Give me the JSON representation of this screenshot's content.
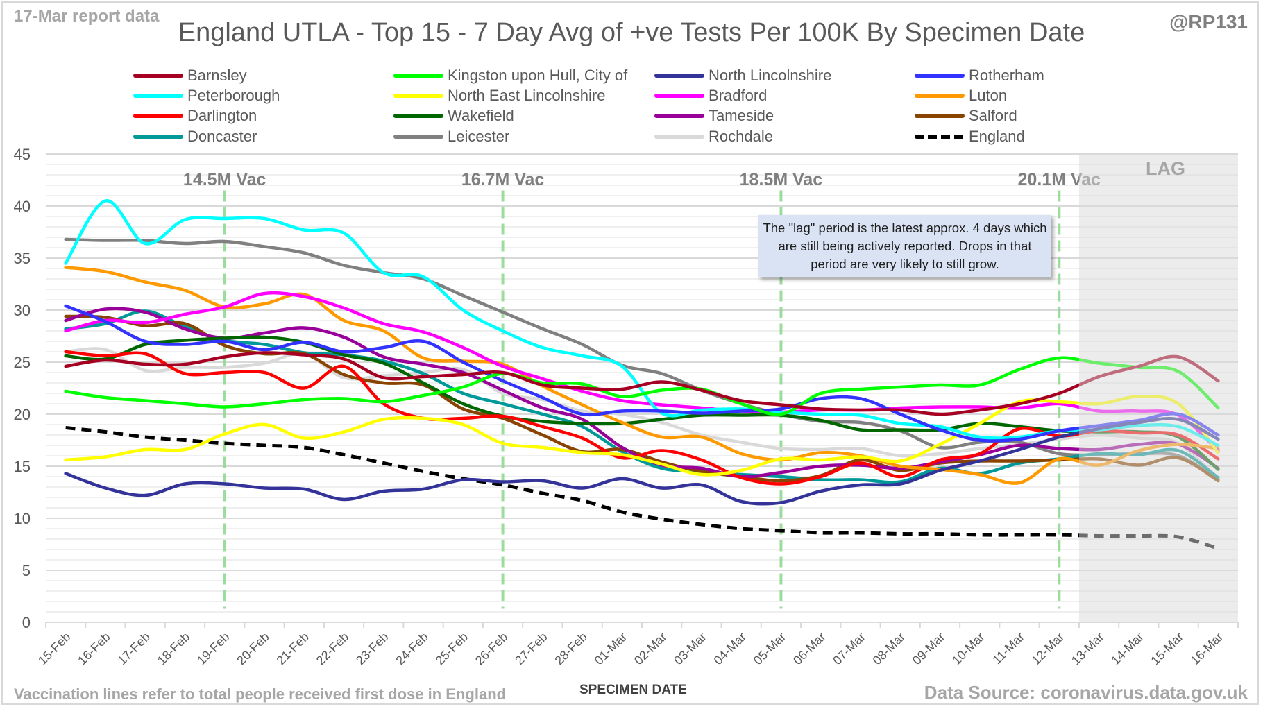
{
  "header": {
    "report_date": "17-Mar report data",
    "title": "England UTLA - Top 15 - 7 Day Avg of +ve Tests Per 100K By Specimen Date",
    "handle": "@RP131"
  },
  "footer": {
    "vaccination_note": "Vaccination lines refer to total people received first dose in England",
    "data_source": "Data Source: coronavirus.data.gov.uk"
  },
  "annotation": {
    "lag_label": "LAG",
    "lag_note": "The \"lag\" period is the latest approx. 4 days which are still being actively reported.  Drops in that period are very likely to still grow."
  },
  "chart_data": {
    "type": "line",
    "title": "England UTLA - Top 15 - 7 Day Avg of +ve Tests Per 100K By Specimen Date",
    "xlabel": "SPECIMEN DATE",
    "ylabel": "",
    "ylim": [
      0,
      45
    ],
    "yticks": [
      0,
      5,
      10,
      15,
      20,
      25,
      30,
      35,
      40,
      45
    ],
    "grid": true,
    "legend_position": "top",
    "x": [
      "15-Feb",
      "16-Feb",
      "17-Feb",
      "18-Feb",
      "19-Feb",
      "20-Feb",
      "21-Feb",
      "22-Feb",
      "23-Feb",
      "24-Feb",
      "25-Feb",
      "26-Feb",
      "27-Feb",
      "28-Feb",
      "01-Mar",
      "02-Mar",
      "03-Mar",
      "04-Mar",
      "05-Mar",
      "06-Mar",
      "07-Mar",
      "08-Mar",
      "09-Mar",
      "10-Mar",
      "11-Mar",
      "12-Mar",
      "13-Mar",
      "14-Mar",
      "15-Mar",
      "16-Mar"
    ],
    "lag_period": {
      "label": "LAG",
      "from": "13-Mar",
      "to": "16-Mar"
    },
    "vaccination_markers": [
      {
        "date": "19-Feb",
        "label": "14.5M Vac"
      },
      {
        "date": "26-Feb",
        "label": "16.7M Vac"
      },
      {
        "date": "05-Mar",
        "label": "18.5M Vac"
      },
      {
        "date": "12-Mar",
        "label": "20.1M Vac"
      }
    ],
    "series": [
      {
        "name": "Barnsley",
        "color": "#a50021",
        "dashed": false,
        "values": [
          24.6,
          25.2,
          24.8,
          24.8,
          25.5,
          25.9,
          25.7,
          25.3,
          23.5,
          23.6,
          23.8,
          24.0,
          22.8,
          22.5,
          22.4,
          23.1,
          22.3,
          21.3,
          20.9,
          20.5,
          20.4,
          20.4,
          20.0,
          20.4,
          21.0,
          22.0,
          23.6,
          24.6,
          25.5,
          23.2
        ]
      },
      {
        "name": "Kingston upon Hull, City of",
        "color": "#00ff00",
        "dashed": false,
        "values": [
          22.2,
          21.6,
          21.3,
          21.0,
          20.7,
          21.0,
          21.4,
          21.5,
          21.2,
          21.8,
          22.6,
          23.9,
          23.0,
          22.9,
          21.7,
          22.3,
          22.4,
          21.0,
          20.0,
          22.0,
          22.4,
          22.6,
          22.8,
          22.8,
          24.3,
          25.4,
          24.9,
          24.5,
          24.1,
          20.6
        ]
      },
      {
        "name": "North Lincolnshire",
        "color": "#333399",
        "dashed": false,
        "values": [
          14.3,
          12.9,
          12.2,
          13.3,
          13.3,
          12.9,
          12.8,
          11.8,
          12.6,
          12.8,
          13.7,
          13.5,
          13.6,
          12.9,
          13.8,
          12.9,
          13.2,
          11.6,
          11.5,
          12.6,
          13.2,
          13.3,
          14.6,
          15.5,
          16.6,
          17.8,
          18.6,
          19.2,
          19.5,
          17.6
        ]
      },
      {
        "name": "Rotherham",
        "color": "#3333ff",
        "dashed": false,
        "values": [
          30.4,
          28.9,
          27.0,
          26.7,
          27.0,
          26.2,
          26.9,
          26.0,
          26.4,
          27.0,
          25.0,
          23.2,
          21.6,
          20.0,
          20.3,
          20.3,
          20.1,
          20.3,
          20.5,
          21.5,
          21.5,
          20.0,
          18.5,
          17.5,
          17.6,
          18.4,
          18.9,
          19.4,
          20.0,
          18.0
        ]
      },
      {
        "name": "Peterborough",
        "color": "#00ffff",
        "dashed": false,
        "values": [
          34.5,
          40.5,
          36.4,
          38.7,
          38.8,
          38.8,
          37.7,
          37.4,
          33.6,
          33.2,
          30.0,
          28.0,
          26.4,
          25.6,
          24.6,
          20.1,
          20.4,
          20.5,
          20.2,
          20.0,
          19.9,
          19.1,
          18.8,
          17.8,
          17.8,
          18.4,
          18.5,
          18.9,
          18.8,
          17.0
        ]
      },
      {
        "name": "North East Lincolnshire",
        "color": "#ffff00",
        "dashed": false,
        "values": [
          15.6,
          15.9,
          16.6,
          16.6,
          18.1,
          19.0,
          17.7,
          18.3,
          19.5,
          19.6,
          19.0,
          17.2,
          16.8,
          16.3,
          16.1,
          15.2,
          14.2,
          14.6,
          15.7,
          15.6,
          15.9,
          15.5,
          17.1,
          19.1,
          21.2,
          21.2,
          21.0,
          21.7,
          21.0,
          16.3
        ]
      },
      {
        "name": "Bradford",
        "color": "#ff00ff",
        "dashed": false,
        "values": [
          28.0,
          29.0,
          28.8,
          29.6,
          30.3,
          31.6,
          31.3,
          30.2,
          28.7,
          27.9,
          26.4,
          24.6,
          23.4,
          22.2,
          21.3,
          20.9,
          20.6,
          20.3,
          20.2,
          20.4,
          20.4,
          20.6,
          20.7,
          20.7,
          20.6,
          21.0,
          20.3,
          20.3,
          19.9,
          16.5
        ]
      },
      {
        "name": "Luton",
        "color": "#ff9900",
        "dashed": false,
        "values": [
          34.1,
          33.7,
          32.7,
          31.9,
          30.3,
          30.6,
          31.5,
          29.0,
          28.0,
          25.4,
          25.1,
          24.8,
          22.7,
          20.9,
          19.2,
          17.8,
          17.8,
          16.2,
          15.6,
          16.3,
          16.0,
          15.0,
          14.7,
          14.2,
          13.4,
          15.7,
          15.1,
          16.5,
          17.1,
          16.7
        ]
      },
      {
        "name": "Darlington",
        "color": "#ff0000",
        "dashed": false,
        "values": [
          26.0,
          25.6,
          25.8,
          23.9,
          24.0,
          24.0,
          22.5,
          24.6,
          21.0,
          19.6,
          19.6,
          19.8,
          18.8,
          17.7,
          15.8,
          16.5,
          15.6,
          13.9,
          13.3,
          14.0,
          15.3,
          14.0,
          15.6,
          16.2,
          18.6,
          17.9,
          18.4,
          18.2,
          18.0,
          15.7
        ]
      },
      {
        "name": "Wakefield",
        "color": "#006600",
        "dashed": false,
        "values": [
          25.6,
          25.3,
          26.7,
          27.1,
          27.3,
          27.4,
          26.9,
          25.7,
          24.9,
          23.0,
          21.0,
          19.8,
          19.3,
          19.1,
          19.1,
          19.5,
          19.9,
          19.9,
          19.9,
          19.4,
          18.5,
          18.5,
          18.5,
          19.1,
          18.8,
          18.4,
          18.3,
          18.3,
          17.8,
          14.7
        ]
      },
      {
        "name": "Tameside",
        "color": "#990099",
        "dashed": false,
        "values": [
          29.0,
          30.1,
          29.8,
          28.2,
          27.3,
          27.8,
          28.3,
          27.4,
          25.5,
          24.8,
          24.0,
          22.3,
          20.6,
          19.5,
          16.8,
          15.1,
          14.8,
          14.0,
          14.4,
          15.0,
          15.1,
          14.8,
          15.4,
          16.1,
          17.0,
          16.7,
          16.6,
          17.1,
          17.1,
          14.8
        ]
      },
      {
        "name": "Salford",
        "color": "#884400",
        "dashed": false,
        "values": [
          29.4,
          29.3,
          28.5,
          28.7,
          26.6,
          25.8,
          25.8,
          23.8,
          23.0,
          22.8,
          20.5,
          19.6,
          18.0,
          16.4,
          16.6,
          15.4,
          14.5,
          14.0,
          13.6,
          14.1,
          15.6,
          14.6,
          15.3,
          15.5,
          15.5,
          15.6,
          15.7,
          15.1,
          15.8,
          13.6
        ]
      },
      {
        "name": "Doncaster",
        "color": "#009999",
        "dashed": false,
        "values": [
          28.2,
          28.7,
          29.9,
          28.4,
          27.1,
          26.7,
          25.9,
          25.7,
          25.1,
          23.9,
          22.0,
          21.0,
          20.0,
          18.8,
          16.4,
          14.8,
          14.5,
          14.2,
          14.0,
          13.7,
          13.7,
          13.5,
          14.8,
          14.3,
          15.3,
          15.7,
          16.2,
          16.1,
          16.5,
          13.9
        ]
      },
      {
        "name": "Leicester",
        "color": "#808080",
        "dashed": false,
        "values": [
          36.8,
          36.7,
          36.7,
          36.4,
          36.6,
          36.1,
          35.5,
          34.3,
          33.6,
          33.0,
          31.4,
          29.8,
          28.2,
          26.7,
          24.7,
          23.9,
          22.3,
          21.0,
          20.0,
          19.3,
          19.2,
          18.4,
          16.8,
          17.3,
          17.3,
          16.2,
          16.1,
          16.2,
          16.0,
          13.7
        ]
      },
      {
        "name": "Rochdale",
        "color": "#d9d9d9",
        "dashed": false,
        "values": [
          26.0,
          26.2,
          24.2,
          24.5,
          24.5,
          24.9,
          25.8,
          23.5,
          23.7,
          24.0,
          24.3,
          22.0,
          21.4,
          20.3,
          20.0,
          19.2,
          18.0,
          17.3,
          16.7,
          16.6,
          16.7,
          16.0,
          16.2,
          16.7,
          17.1,
          17.6,
          18.0,
          17.7,
          17.2,
          13.7
        ]
      },
      {
        "name": "England",
        "color": "#000000",
        "dashed": true,
        "values": [
          18.7,
          18.3,
          17.8,
          17.5,
          17.2,
          17.0,
          16.8,
          16.1,
          15.3,
          14.5,
          13.8,
          13.2,
          12.4,
          11.7,
          10.6,
          9.9,
          9.4,
          9.0,
          8.8,
          8.6,
          8.6,
          8.5,
          8.5,
          8.4,
          8.4,
          8.4,
          8.3,
          8.3,
          8.2,
          7.1
        ]
      }
    ]
  }
}
